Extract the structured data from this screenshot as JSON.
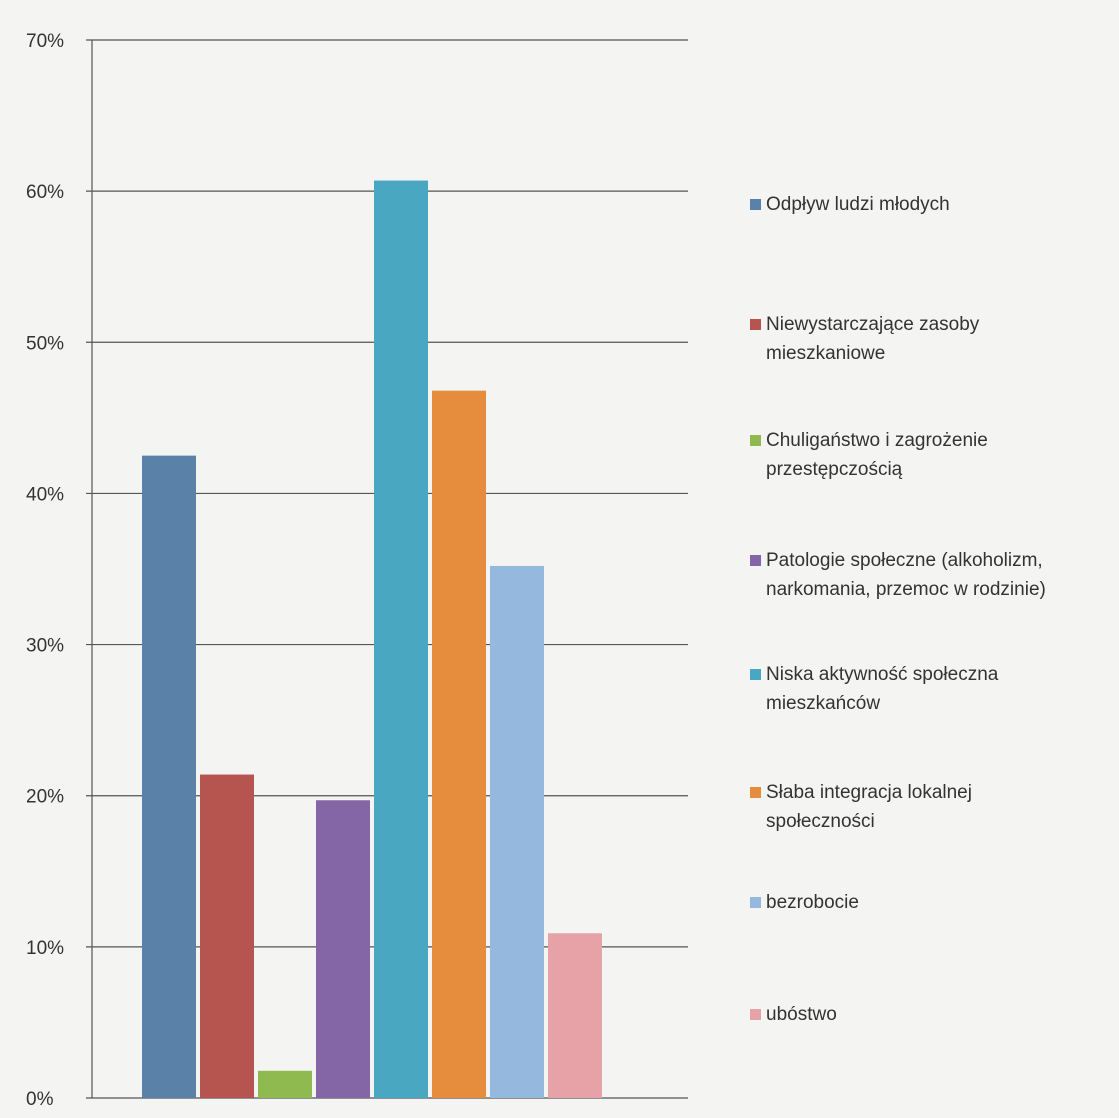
{
  "chart_data": {
    "type": "bar",
    "title": "",
    "xlabel": "",
    "ylabel": "",
    "ylim": [
      0,
      70
    ],
    "yticks": [
      "0%",
      "10%",
      "20%",
      "30%",
      "40%",
      "50%",
      "60%",
      "70%"
    ],
    "grid": true,
    "legend_position": "right",
    "series": [
      {
        "name": "Odpływ  ludzi młodych",
        "value": 42.5,
        "color": "#5a81a8"
      },
      {
        "name": "Niewystarczające zasoby mieszkaniowe",
        "value": 21.4,
        "color": "#b65450"
      },
      {
        "name": "Chuligaństwo i zagrożenie przestępczością",
        "value": 1.8,
        "color": "#8fba4f"
      },
      {
        "name": "Patologie społeczne (alkoholizm, narkomania, przemoc w rodzinie)",
        "value": 19.7,
        "color": "#8466a6"
      },
      {
        "name": "Niska aktywność społeczna mieszkańców",
        "value": 60.7,
        "color": "#4aa7c2"
      },
      {
        "name": "Słaba integracja lokalnej społeczności",
        "value": 46.8,
        "color": "#e58d3d"
      },
      {
        "name": "bezrobocie",
        "value": 35.2,
        "color": "#95b9de"
      },
      {
        "name": "ubóstwo",
        "value": 10.9,
        "color": "#e6a2a7"
      }
    ],
    "legend_lines": [
      "Odpływ  ludzi młodych",
      "Niewystarczające zasoby\nmieszkaniowe",
      "Chuligaństwo i zagrożenie\nprzestępczością",
      "Patologie społeczne (alkoholizm,\nnarkomania, przemoc w rodzinie)",
      "Niska aktywność społeczna\nmieszkańców",
      "Słaba integracja lokalnej\nspołeczności",
      "bezrobocie",
      "ubóstwo"
    ]
  }
}
